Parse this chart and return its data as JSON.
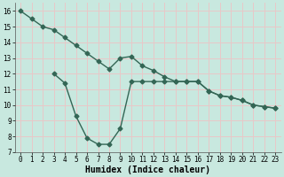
{
  "line1_x": [
    0,
    1,
    2,
    3,
    4,
    5,
    6,
    7,
    8,
    9,
    10,
    11,
    12,
    13,
    14,
    15,
    16,
    17,
    18,
    19,
    20,
    21,
    22,
    23
  ],
  "line1_y": [
    16.0,
    15.5,
    15.0,
    14.8,
    14.3,
    13.8,
    13.3,
    12.8,
    12.3,
    13.0,
    13.1,
    12.5,
    12.2,
    11.8,
    11.5,
    11.5,
    11.5,
    10.9,
    10.6,
    10.5,
    10.3,
    10.0,
    9.9,
    9.8
  ],
  "line2_x": [
    3,
    4,
    5,
    6,
    7,
    8,
    9,
    10,
    11,
    12,
    13,
    14,
    15,
    16,
    17,
    18,
    19,
    20,
    21,
    22,
    23
  ],
  "line2_y": [
    12.0,
    11.4,
    9.3,
    7.9,
    7.5,
    7.5,
    8.5,
    11.5,
    11.5,
    11.5,
    11.5,
    11.5,
    11.5,
    11.5,
    10.9,
    10.6,
    10.5,
    10.3,
    10.0,
    9.9,
    9.8
  ],
  "line_color": "#336655",
  "bg_color": "#c8e8df",
  "grid_color": "#e8c8c8",
  "xlabel": "Humidex (Indice chaleur)",
  "xlim": [
    -0.5,
    23.5
  ],
  "ylim": [
    7,
    16.5
  ],
  "yticks": [
    7,
    8,
    9,
    10,
    11,
    12,
    13,
    14,
    15,
    16
  ],
  "xticks": [
    0,
    1,
    2,
    3,
    4,
    5,
    6,
    7,
    8,
    9,
    10,
    11,
    12,
    13,
    14,
    15,
    16,
    17,
    18,
    19,
    20,
    21,
    22,
    23
  ],
  "marker": "D",
  "markersize": 2.5,
  "linewidth": 1.0,
  "xlabel_fontsize": 7,
  "tick_fontsize": 5.5
}
